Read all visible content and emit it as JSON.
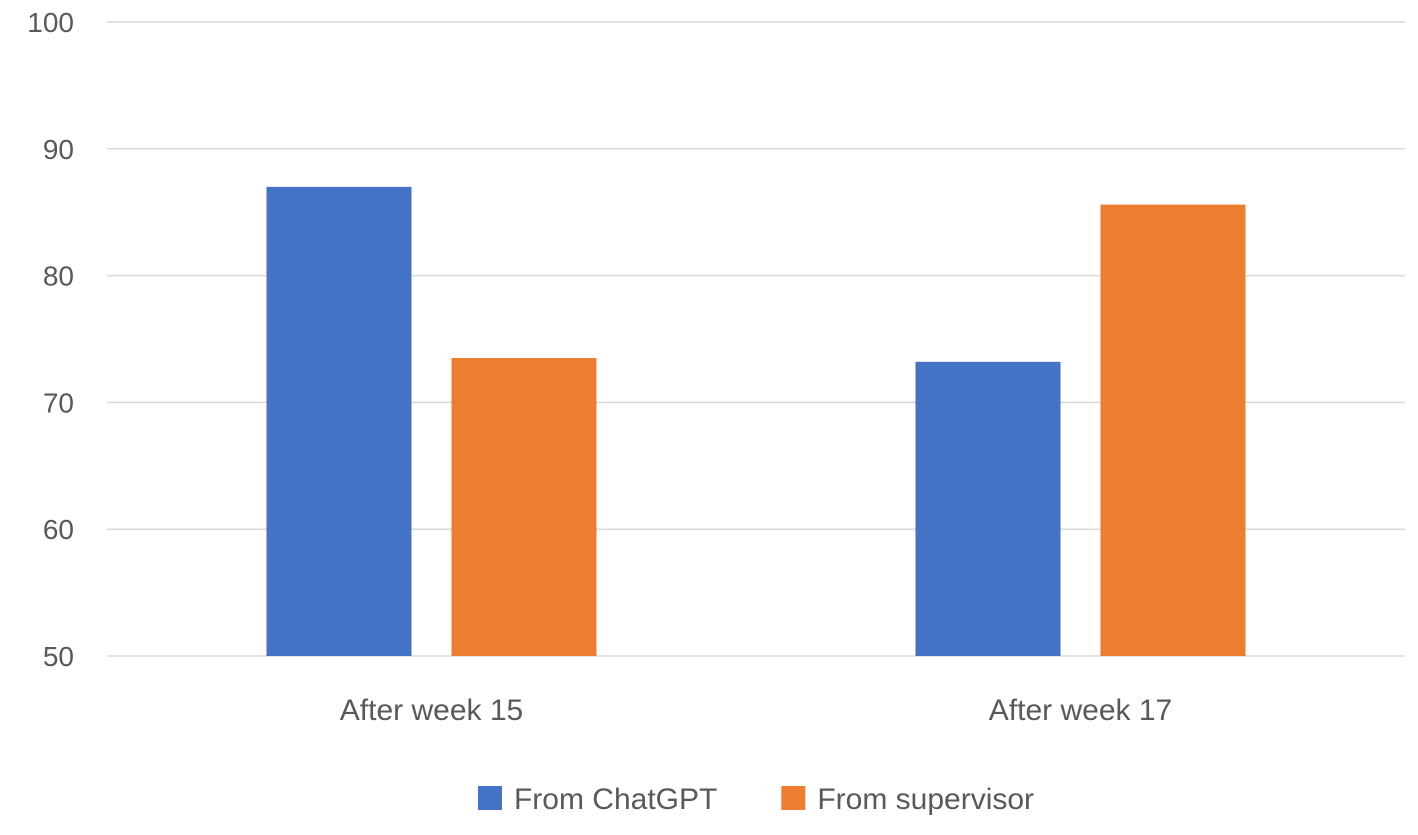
{
  "chart_data": {
    "type": "bar",
    "title": "",
    "xlabel": "",
    "ylabel": "",
    "categories": [
      "After week 15",
      "After week 17"
    ],
    "series": [
      {
        "name": "From ChatGPT",
        "values": [
          87,
          73.2
        ],
        "color": "#4472C4"
      },
      {
        "name": "From supervisor",
        "values": [
          73.5,
          85.6
        ],
        "color": "#ED7D31"
      }
    ],
    "ylim": [
      50,
      100
    ],
    "yticks": [
      50,
      60,
      70,
      80,
      90,
      100
    ],
    "grid": true,
    "legend_position": "bottom"
  }
}
